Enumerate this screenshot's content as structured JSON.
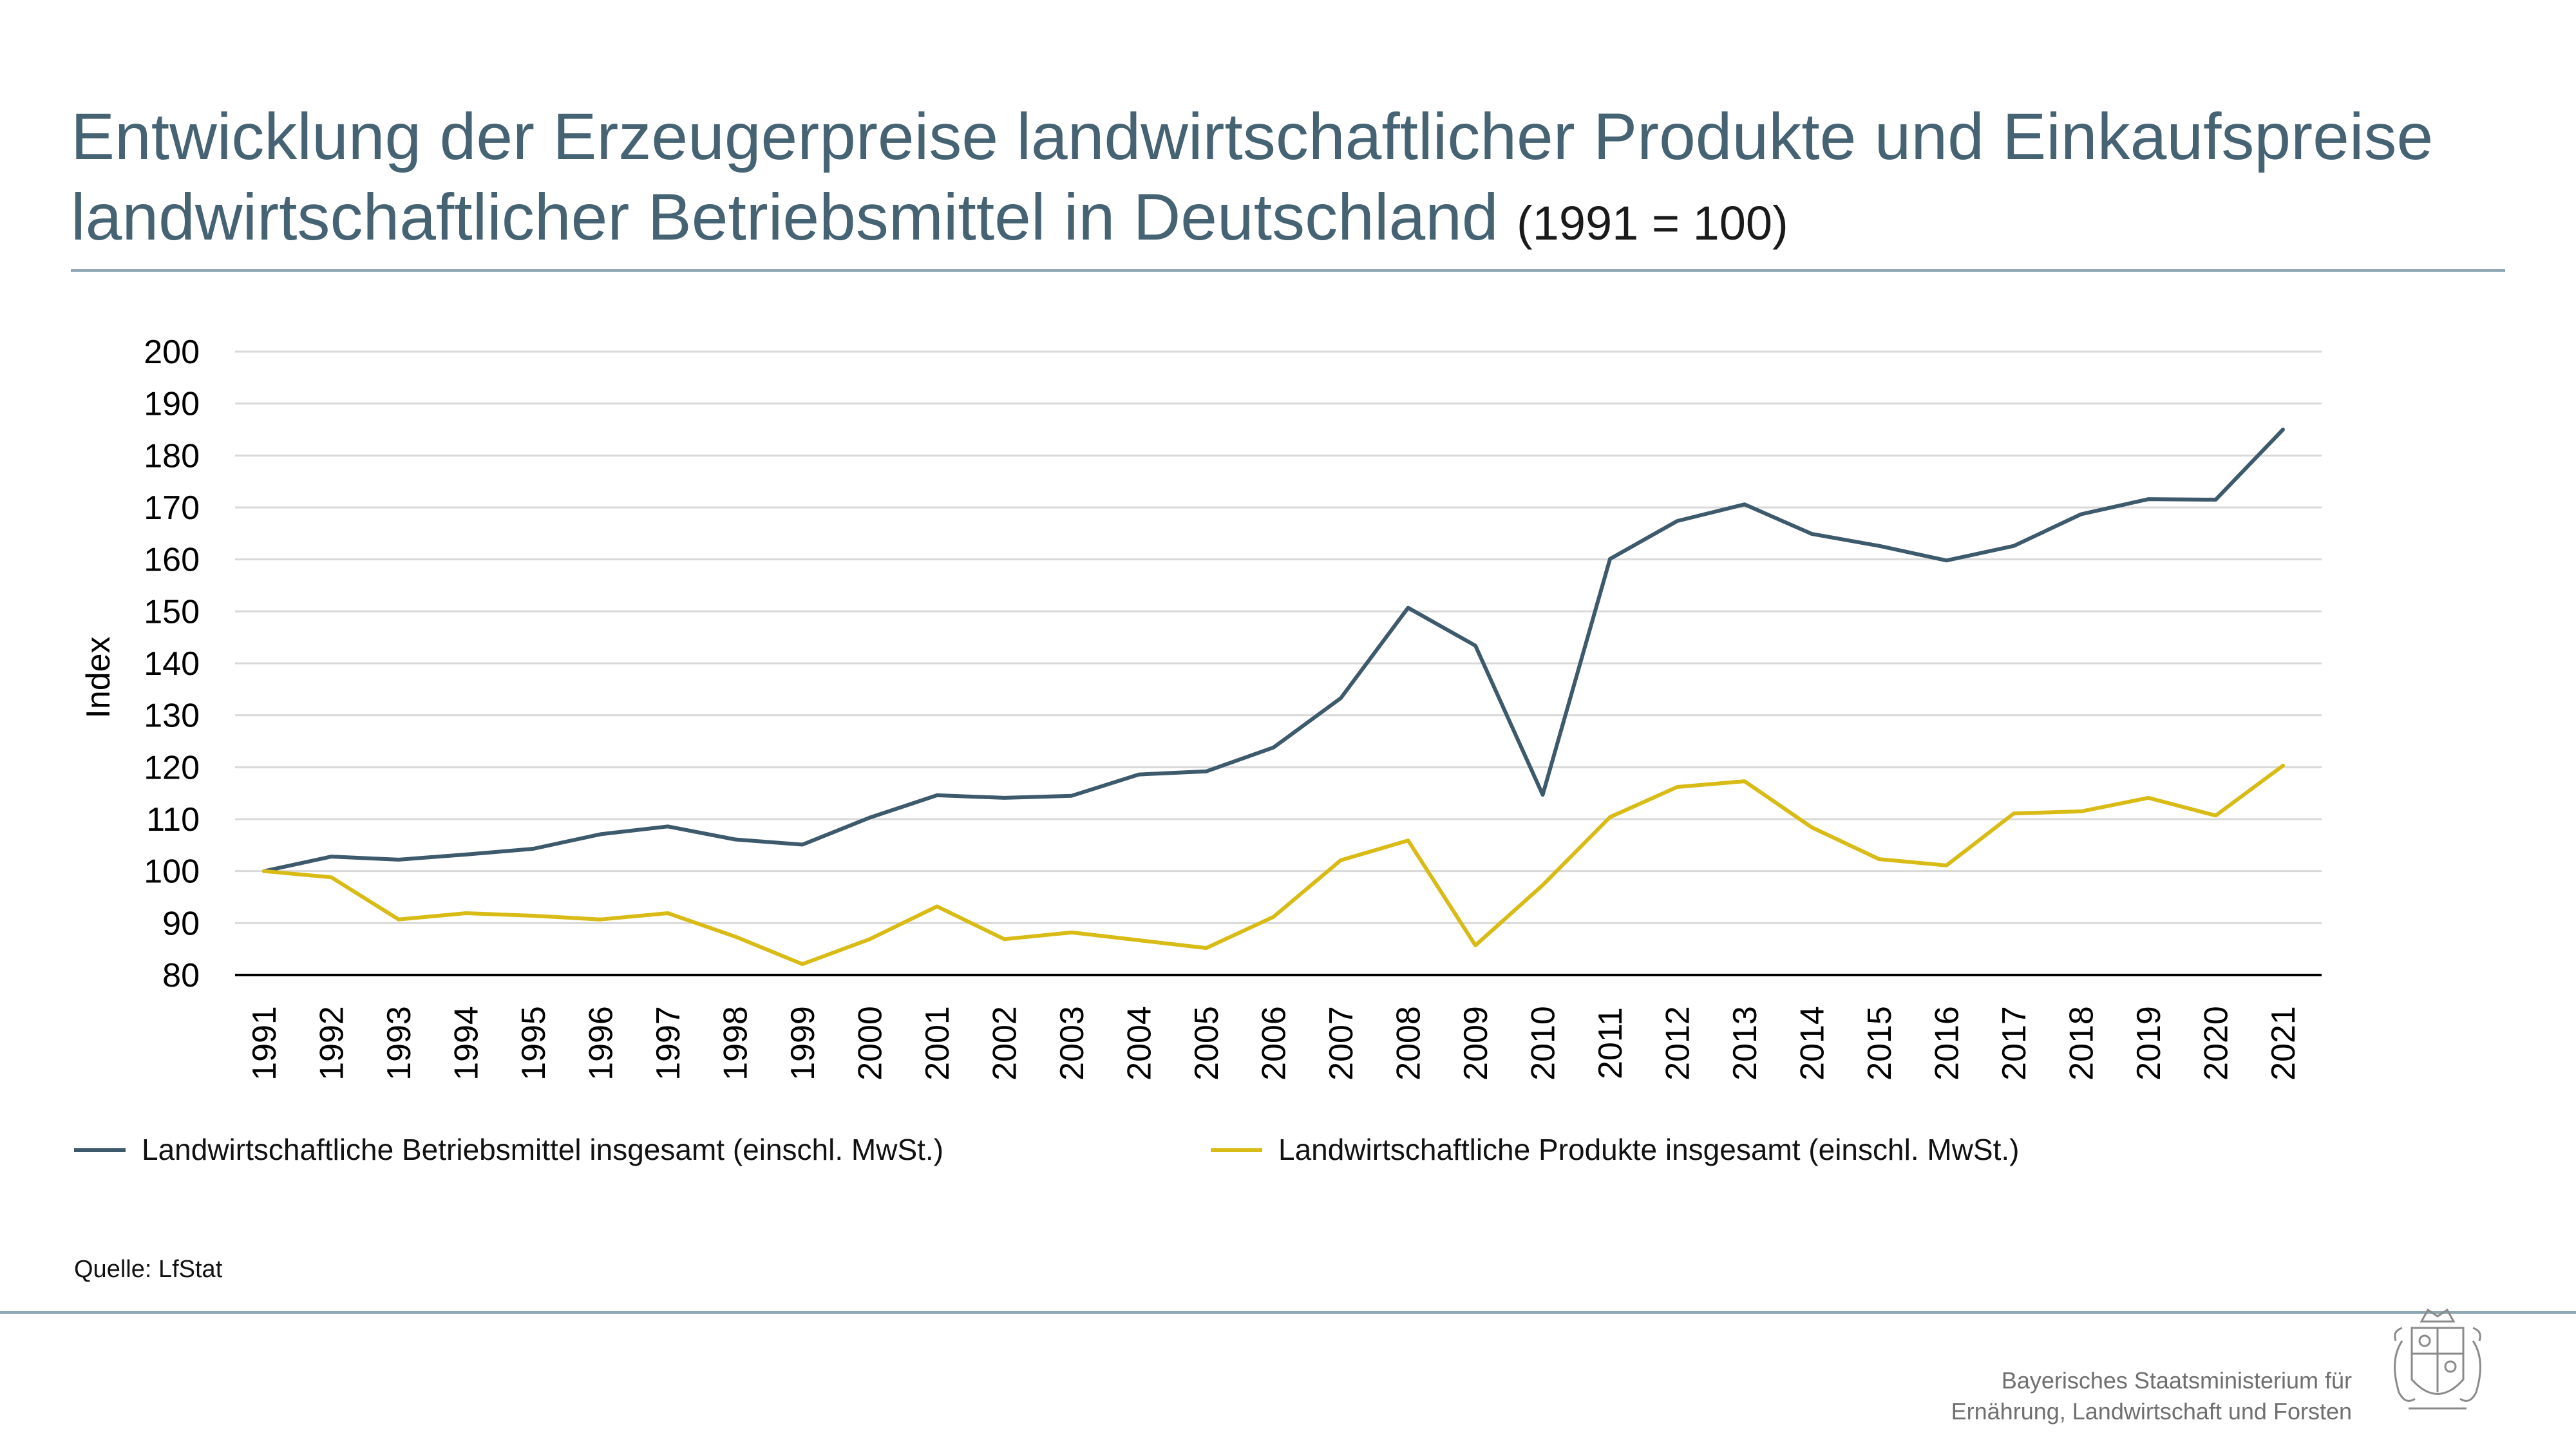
{
  "title": {
    "line1": "Entwicklung der Erzeugerpreise landwirtschaftlicher Produkte und Einkaufspreise",
    "line2": "landwirtschaftlicher Betriebsmittel in Deutschland",
    "suffix": "(1991 = 100)"
  },
  "source": "Quelle: LfStat",
  "footer": {
    "ministry_line1": "Bayerisches Staatsministerium für",
    "ministry_line2": "Ernährung, Landwirtschaft und Forsten",
    "crest_icon": "bavarian-coat-of-arms-icon"
  },
  "colors": {
    "accent": "#466374",
    "series1": "#3d5a6c",
    "series2": "#d9bb16",
    "grid": "#d9d9d9",
    "rule": "#8ea6b4"
  },
  "chart_data": {
    "type": "line",
    "ylabel": "Index",
    "ylim": [
      80,
      200
    ],
    "yticks": [
      80,
      90,
      100,
      110,
      120,
      130,
      140,
      150,
      160,
      170,
      180,
      190,
      200
    ],
    "grid": true,
    "legend_position": "bottom",
    "x": [
      "1991",
      "1992",
      "1993",
      "1994",
      "1995",
      "1996",
      "1997",
      "1998",
      "1999",
      "2000",
      "2001",
      "2002",
      "2003",
      "2004",
      "2005",
      "2006",
      "2007",
      "2008",
      "2009",
      "2010",
      "2011",
      "2012",
      "2013",
      "2014",
      "2015",
      "2016",
      "2017",
      "2018",
      "2019",
      "2020",
      "2021"
    ],
    "series": [
      {
        "name": "Landwirtschaftliche Betriebsmittel insgesamt (einschl. MwSt.)",
        "color": "#3d5a6c",
        "values": [
          100,
          102.8,
          102.2,
          103.2,
          104.3,
          107.1,
          108.6,
          106.1,
          105.1,
          110.3,
          114.6,
          114.1,
          114.5,
          118.6,
          119.2,
          123.8,
          133.3,
          150.7,
          143.4,
          114.7,
          160.1,
          167.4,
          170.6,
          164.9,
          162.6,
          159.8,
          162.6,
          168.7,
          171.6,
          171.5,
          185.0
        ]
      },
      {
        "name": "Landwirtschaftliche Produkte insgesamt (einschl. MwSt.)",
        "color": "#d9bb16",
        "values": [
          100,
          98.8,
          90.7,
          91.9,
          91.4,
          90.7,
          91.9,
          87.4,
          82.1,
          86.9,
          93.2,
          86.9,
          88.2,
          86.7,
          85.2,
          91.2,
          102.1,
          105.9,
          85.7,
          97.3,
          110.4,
          116.2,
          117.3,
          108.4,
          102.3,
          101.1,
          111.1,
          111.5,
          114.1,
          110.7,
          120.3
        ]
      }
    ]
  }
}
